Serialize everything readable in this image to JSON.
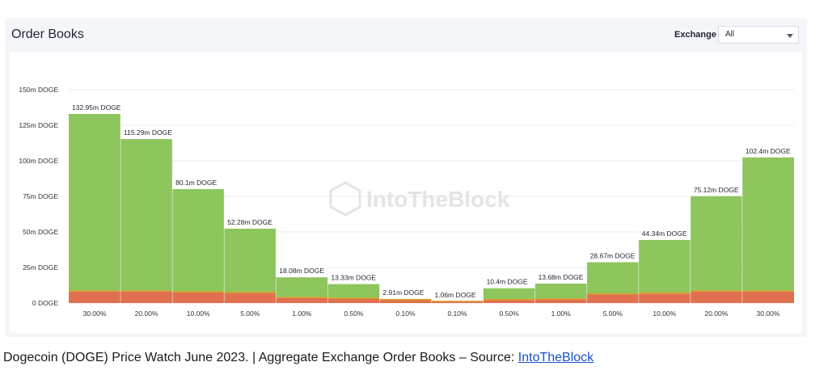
{
  "card": {
    "title": "Order Books"
  },
  "filter": {
    "label": "Exchange",
    "value": "All",
    "options": [
      "All"
    ]
  },
  "watermark": {
    "text": "IntoTheBlock"
  },
  "caption": {
    "text": "Dogecoin (DOGE) Price Watch June 2023. | Aggregate Exchange Order Books – Source: ",
    "link": "IntoTheBlock"
  },
  "colors": {
    "bids": "#8ec55d",
    "asks_bottom": "#e07050",
    "accent": "#e0a030",
    "grid": "#ebebeb"
  },
  "chart_data": {
    "type": "bar",
    "categories": [
      "30.00%",
      "20.00%",
      "10.00%",
      "5.00%",
      "1.00%",
      "0.50%",
      "0.10%",
      "0.10%",
      "0.50%",
      "1.00%",
      "5.00%",
      "10.00%",
      "20.00%",
      "30.00%"
    ],
    "series": [
      {
        "values": [
          132.95,
          115.29,
          80.1,
          52.28,
          18.08,
          13.33,
          2.91,
          1.06,
          10.4,
          13.68,
          28.67,
          44.34,
          75.12,
          102.4
        ]
      },
      {
        "values": [
          8,
          8,
          7.5,
          7,
          3.5,
          3,
          2,
          0.8,
          2,
          2.5,
          6,
          6.5,
          8,
          8
        ]
      }
    ],
    "data_labels": [
      "132.95m DOGE",
      "115.29m DOGE",
      "80.1m DOGE",
      "52.28m DOGE",
      "18.08m DOGE",
      "13.33m DOGE",
      "2.91m DOGE",
      "1.06m DOGE",
      "10.4m DOGE",
      "13.68m DOGE",
      "28.67m DOGE",
      "44.34m DOGE",
      "75.12m DOGE",
      "102.4m DOGE"
    ],
    "y_ticks": [
      0,
      25,
      50,
      75,
      100,
      125,
      150
    ],
    "y_tick_labels": [
      "0 DOGE",
      "25m DOGE",
      "50m DOGE",
      "75m DOGE",
      "100m DOGE",
      "125m DOGE",
      "150m DOGE"
    ],
    "ylim": [
      0,
      150
    ],
    "grid": true,
    "title": "",
    "xlabel": "",
    "ylabel": ""
  }
}
